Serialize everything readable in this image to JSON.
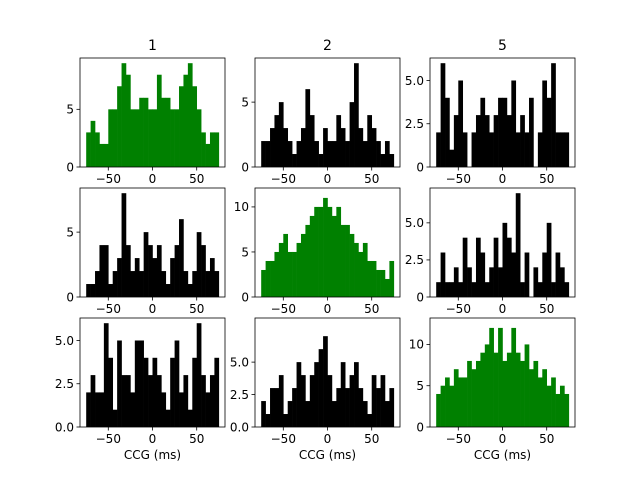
{
  "chart_data": [
    {
      "type": "bar",
      "title": "1",
      "xlabel": "",
      "ylabel": "",
      "color": "#008000",
      "xlim": [
        -82,
        82
      ],
      "ylim": [
        0,
        9.45
      ],
      "xticks": [
        -50,
        0,
        50
      ],
      "yticks": [
        0,
        5
      ],
      "bin_width": 5,
      "bin_start": -75,
      "values": [
        3,
        4,
        3,
        2,
        2,
        5,
        5,
        7,
        9,
        8,
        5,
        5,
        6,
        6,
        5,
        5,
        8,
        6,
        6,
        5,
        5,
        7,
        8,
        9,
        7,
        5,
        3,
        2,
        3,
        3
      ]
    },
    {
      "type": "bar",
      "title": "2",
      "xlabel": "",
      "ylabel": "",
      "color": "#000000",
      "xlim": [
        -82,
        82
      ],
      "ylim": [
        0,
        8.4
      ],
      "xticks": [
        -50,
        0,
        50
      ],
      "yticks": [
        0,
        5
      ],
      "bin_width": 5,
      "bin_start": -75,
      "values": [
        2,
        2,
        3,
        4,
        5,
        3,
        2,
        1,
        2,
        3,
        6,
        4,
        2,
        1,
        3,
        2,
        2,
        4,
        3,
        2,
        5,
        8,
        3,
        2,
        4,
        3,
        2,
        1,
        2,
        1
      ]
    },
    {
      "type": "bar",
      "title": "5",
      "xlabel": "",
      "ylabel": "",
      "color": "#000000",
      "xlim": [
        -82,
        82
      ],
      "ylim": [
        0,
        6.3
      ],
      "xticks": [
        -50,
        0,
        50
      ],
      "yticks": [
        0,
        2.5,
        5
      ],
      "yticklabels": [
        "0",
        "2.5",
        "5.0"
      ],
      "bin_width": 5,
      "bin_start": -75,
      "values": [
        2,
        6,
        4,
        1,
        3,
        5,
        2,
        0,
        2,
        3,
        4,
        3,
        2,
        3,
        4,
        4,
        3,
        5,
        2,
        3,
        2,
        4,
        0,
        2,
        5,
        4,
        6,
        2,
        2,
        2
      ]
    },
    {
      "type": "bar",
      "title": "",
      "xlabel": "",
      "ylabel": "",
      "color": "#000000",
      "xlim": [
        -82,
        82
      ],
      "ylim": [
        0,
        8.4
      ],
      "xticks": [
        -50,
        0,
        50
      ],
      "yticks": [
        0,
        5
      ],
      "bin_width": 5,
      "bin_start": -75,
      "values": [
        1,
        1,
        2,
        4,
        4,
        1,
        2,
        3,
        8,
        4,
        2,
        3,
        2,
        5,
        4,
        3,
        4,
        2,
        1,
        3,
        4,
        6,
        2,
        1,
        2,
        5,
        4,
        2,
        3,
        2
      ]
    },
    {
      "type": "bar",
      "title": "",
      "xlabel": "",
      "ylabel": "",
      "color": "#008000",
      "xlim": [
        -82,
        82
      ],
      "ylim": [
        0,
        12.1
      ],
      "xticks": [
        -50,
        0,
        50
      ],
      "yticks": [
        0,
        5,
        10
      ],
      "bin_width": 5,
      "bin_start": -75,
      "values": [
        3,
        4,
        4,
        5,
        6,
        7,
        5,
        5,
        6,
        7,
        8,
        9,
        10,
        10,
        11,
        10,
        9,
        10,
        8,
        8,
        7,
        6,
        5,
        6,
        4,
        4,
        3,
        3,
        2,
        4
      ]
    },
    {
      "type": "bar",
      "title": "",
      "xlabel": "",
      "ylabel": "",
      "color": "#000000",
      "xlim": [
        -82,
        82
      ],
      "ylim": [
        0,
        7.35
      ],
      "xticks": [
        -50,
        0,
        50
      ],
      "yticks": [
        0,
        2.5,
        5
      ],
      "yticklabels": [
        "0",
        "2.5",
        "5.0"
      ],
      "bin_width": 5,
      "bin_start": -75,
      "values": [
        1,
        3,
        1,
        1,
        2,
        1,
        4,
        2,
        1,
        4,
        3,
        1,
        2,
        4,
        2,
        5,
        4,
        3,
        7,
        1,
        3,
        0,
        2,
        1,
        3,
        5,
        1,
        3,
        2,
        1
      ]
    },
    {
      "type": "bar",
      "title": "",
      "xlabel": "CCG (ms)",
      "ylabel": "",
      "color": "#000000",
      "xlim": [
        -82,
        82
      ],
      "ylim": [
        0,
        6.3
      ],
      "xticks": [
        -50,
        0,
        50
      ],
      "yticks": [
        0,
        2.5,
        5
      ],
      "yticklabels": [
        "0.0",
        "2.5",
        "5.0"
      ],
      "bin_width": 5,
      "bin_start": -75,
      "values": [
        2,
        3,
        2,
        2,
        6,
        4,
        1,
        5,
        3,
        3,
        2,
        5,
        5,
        4,
        3,
        4,
        3,
        2,
        1,
        4,
        5,
        2,
        3,
        1,
        4,
        6,
        3,
        2,
        3,
        4
      ]
    },
    {
      "type": "bar",
      "title": "",
      "xlabel": "CCG (ms)",
      "ylabel": "",
      "color": "#000000",
      "xlim": [
        -82,
        82
      ],
      "ylim": [
        0,
        8.4
      ],
      "xticks": [
        -50,
        0,
        50
      ],
      "yticks": [
        0,
        2.5,
        5
      ],
      "yticklabels": [
        "0.0",
        "2.5",
        "5.0"
      ],
      "bin_width": 5,
      "bin_start": -75,
      "values": [
        2,
        1,
        3,
        3,
        4,
        1,
        2,
        3,
        5,
        4,
        2,
        4,
        5,
        6,
        7,
        4,
        2,
        3,
        5,
        3,
        4,
        5,
        3,
        2,
        1,
        4,
        3,
        4,
        2,
        3
      ]
    },
    {
      "type": "bar",
      "title": "",
      "xlabel": "CCG (ms)",
      "ylabel": "",
      "color": "#008000",
      "xlim": [
        -82,
        82
      ],
      "ylim": [
        0,
        13.2
      ],
      "xticks": [
        -50,
        0,
        50
      ],
      "yticks": [
        0,
        5,
        10
      ],
      "bin_width": 5,
      "bin_start": -75,
      "values": [
        4,
        5,
        6,
        5,
        7,
        6,
        6,
        8,
        7,
        8,
        9,
        10,
        12,
        9,
        12,
        8,
        9,
        12,
        9,
        8,
        10,
        7,
        8,
        6,
        7,
        5,
        6,
        4,
        5,
        4
      ]
    }
  ]
}
